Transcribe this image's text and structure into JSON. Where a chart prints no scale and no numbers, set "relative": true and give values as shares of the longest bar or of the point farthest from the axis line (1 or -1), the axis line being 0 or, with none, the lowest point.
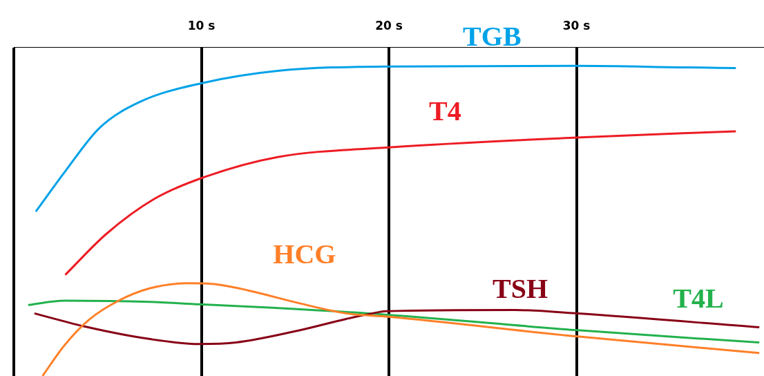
{
  "chart_data": {
    "type": "line",
    "relative": true,
    "grid": "x",
    "legend": false,
    "xlim": [
      0,
      40
    ],
    "xticks": [
      {
        "value": 0,
        "label": null
      },
      {
        "value": 10,
        "label": "10 s"
      },
      {
        "value": 20,
        "label": "20 s"
      },
      {
        "value": 30,
        "label": "30 s"
      }
    ],
    "series": [
      {
        "name": "TGB",
        "color": "#00a2e8",
        "x": [
          1.17,
          2.74,
          4.57,
          6.76,
          10,
          14.07,
          20,
          30,
          36,
          38.5
        ],
        "values": [
          0.53,
          0.66,
          0.8,
          0.885,
          0.944,
          0.984,
          0.998,
          1,
          0.995,
          0.993
        ]
      },
      {
        "name": "T4",
        "color": "#ed1c24",
        "x": [
          2.74,
          4.93,
          7.49,
          10,
          14.07,
          20,
          30,
          38.5
        ],
        "values": [
          0.326,
          0.458,
          0.571,
          0.638,
          0.706,
          0.737,
          0.769,
          0.789
        ]
      },
      {
        "name": "HCG",
        "color": "#ff7f27",
        "x": [
          1.53,
          2.7,
          4.02,
          5.59,
          7.27,
          9.24,
          10.56,
          12.5,
          15.13,
          17.72,
          20,
          29.96,
          39.75
        ],
        "values": [
          0,
          0.099,
          0.182,
          0.243,
          0.283,
          0.299,
          0.297,
          0.276,
          0.236,
          0.202,
          0.191,
          0.128,
          0.074
        ]
      },
      {
        "name": "TSH",
        "color": "#880015",
        "x": [
          1.1,
          3.76,
          7.27,
          9.9,
          11.84,
          15.13,
          17.72,
          19.55,
          19.8,
          26.7,
          29.96,
          39.75
        ],
        "values": [
          0.202,
          0.16,
          0.119,
          0.103,
          0.108,
          0.146,
          0.184,
          0.207,
          0.209,
          0.213,
          0.202,
          0.157
        ]
      },
      {
        "name": "T4L",
        "color": "#22b14c",
        "x": [
          0.77,
          2.7,
          7.27,
          9.9,
          13.8,
          19.8,
          29.96,
          39.75
        ],
        "values": [
          0.229,
          0.243,
          0.239,
          0.231,
          0.22,
          0.198,
          0.148,
          0.108
        ]
      }
    ]
  }
}
